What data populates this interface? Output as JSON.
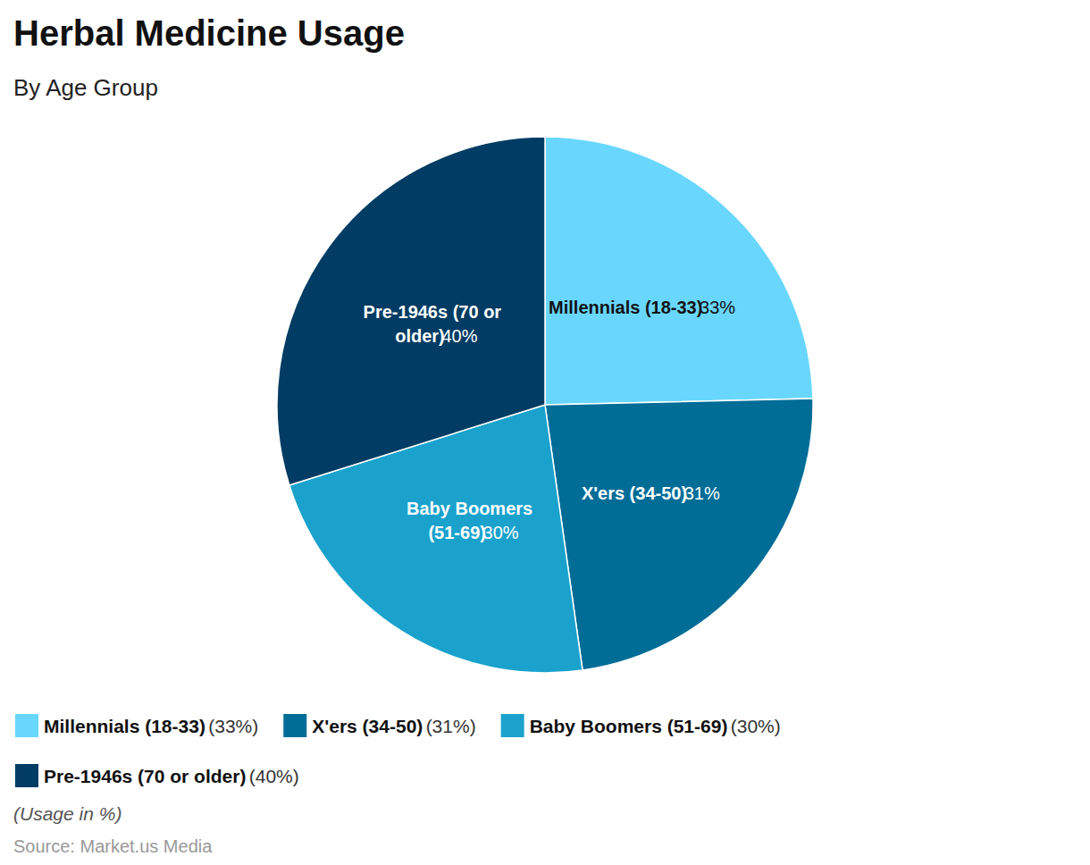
{
  "chart_data": {
    "type": "pie",
    "title": "Herbal Medicine Usage",
    "subtitle": "By Age Group",
    "categories": [
      "Millennials (18-33)",
      "X'ers (34-50)",
      "Baby Boomers (51-69)",
      "Pre-1946s (70 or older)"
    ],
    "values": [
      33,
      31,
      30,
      40
    ],
    "value_labels": [
      "33%",
      "31%",
      "30%",
      "40%"
    ],
    "colors": [
      "#69d7fd",
      "#006d97",
      "#1aa2cd",
      "#003c63"
    ],
    "data_labels": true,
    "legend": "bottom-left",
    "annotations": [
      "(Usage in %)",
      "Source: Market.us Media"
    ]
  }
}
